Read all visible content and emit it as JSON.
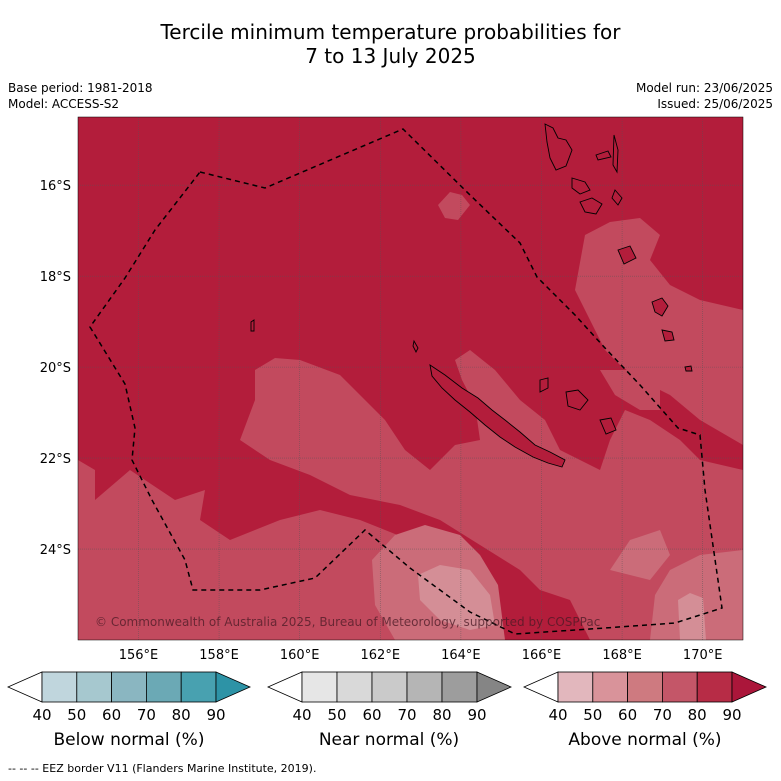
{
  "title": {
    "line1": "Tercile minimum temperature probabilities for",
    "line2": "7 to 13 July 2025"
  },
  "meta_left": {
    "base_period": "Base period: 1981-2018",
    "model": "Model: ACCESS-S2"
  },
  "meta_right": {
    "model_run": "Model run: 23/06/2025",
    "issued": "Issued: 25/06/2025"
  },
  "map": {
    "lon_range": [
      154.5,
      171.0
    ],
    "lat_range": [
      -26.0,
      -14.5
    ],
    "x_ticks": [
      "156°E",
      "158°E",
      "160°E",
      "162°E",
      "164°E",
      "166°E",
      "168°E",
      "170°E"
    ],
    "x_tick_values": [
      156,
      158,
      160,
      162,
      164,
      166,
      168,
      170
    ],
    "y_ticks": [
      "16°S",
      "18°S",
      "20°S",
      "22°S",
      "24°S"
    ],
    "y_tick_values": [
      -16,
      -18,
      -20,
      -22,
      -24
    ],
    "copyright": "© Commonwealth of Australia 2025, Bureau of Meteorology, supported by COSPPac",
    "colors": {
      "above_90": "#b31d3b",
      "above_80": "#c24a5e",
      "above_70": "#cb6c79",
      "above_60": "#d48e96"
    }
  },
  "colorbars": [
    {
      "label": "Below normal (%)",
      "ticks": [
        "40",
        "50",
        "60",
        "70",
        "80",
        "90"
      ],
      "colors": [
        "#ffffff",
        "#c0d6dd",
        "#a6c8cf",
        "#8ab6c1",
        "#6ba9b5",
        "#48a1b0",
        "#2d93a6"
      ]
    },
    {
      "label": "Near normal (%)",
      "ticks": [
        "40",
        "50",
        "60",
        "70",
        "80",
        "90"
      ],
      "colors": [
        "#ffffff",
        "#e6e6e6",
        "#d9d9d9",
        "#cacaca",
        "#b5b5b5",
        "#9d9d9d",
        "#858585"
      ]
    },
    {
      "label": "Above normal (%)",
      "ticks": [
        "40",
        "50",
        "60",
        "70",
        "80",
        "90"
      ],
      "colors": [
        "#ffffff",
        "#e2b7bd",
        "#d9939a",
        "#ce7a80",
        "#c45668",
        "#b72c46",
        "#ab163a"
      ]
    }
  ],
  "footnote": "--  --  -- EEZ border V11 (Flanders Marine Institute, 2019)."
}
